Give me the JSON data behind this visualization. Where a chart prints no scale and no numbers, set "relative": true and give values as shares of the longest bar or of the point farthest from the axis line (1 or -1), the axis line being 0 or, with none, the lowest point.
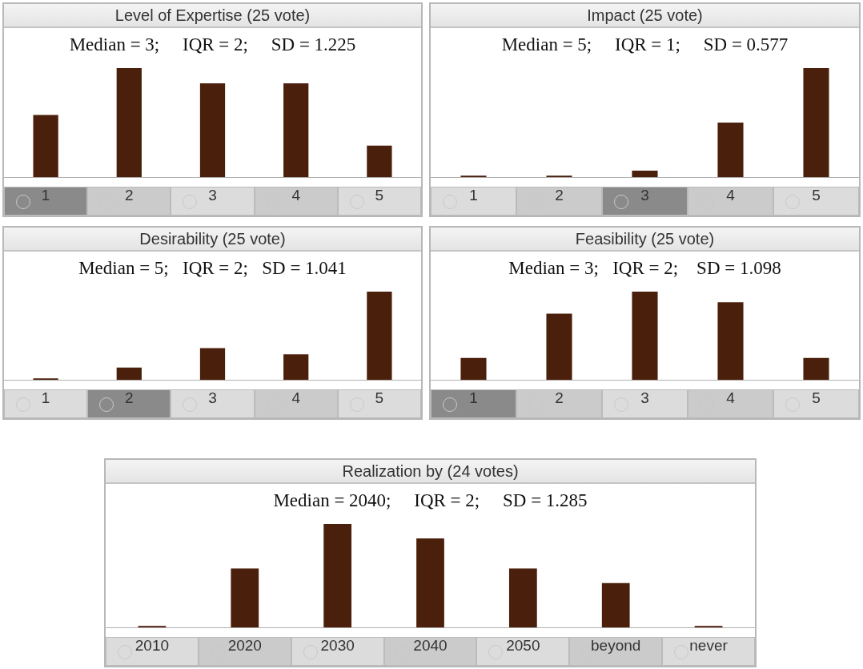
{
  "chart_data": [
    {
      "type": "bar",
      "title": "Level of Expertise (25 vote)",
      "subtitle": "Median = 3;     IQR = 2;     SD = 1.225",
      "relative": true,
      "categories": [
        "1",
        "2",
        "3",
        "4",
        "5"
      ],
      "values": [
        0.57,
        1,
        0.86,
        0.86,
        0.29
      ],
      "color": "#4a1f0b"
    },
    {
      "type": "bar",
      "title": "Impact (25 vote)",
      "subtitle": "Median = 5;     IQR = 1;     SD = 0.577",
      "relative": true,
      "categories": [
        "1",
        "2",
        "3",
        "4",
        "5"
      ],
      "values": [
        0,
        0,
        0.06,
        0.5,
        1
      ],
      "color": "#4a1f0b"
    },
    {
      "type": "bar",
      "title": "Desirability (25 vote)",
      "subtitle": "Median = 5;   IQR = 2;   SD = 1.041",
      "relative": true,
      "categories": [
        "1",
        "2",
        "3",
        "4",
        "5"
      ],
      "values": [
        0,
        0.14,
        0.36,
        0.29,
        1
      ],
      "color": "#4a1f0b"
    },
    {
      "type": "bar",
      "title": "Feasibility (25 vote)",
      "subtitle": "Median = 3;   IQR = 2;    SD = 1.098",
      "relative": true,
      "categories": [
        "1",
        "2",
        "3",
        "4",
        "5"
      ],
      "values": [
        0.25,
        0.75,
        1,
        0.88,
        0.25
      ],
      "color": "#4a1f0b"
    },
    {
      "type": "bar",
      "title": "Realization by (24 votes)",
      "subtitle": "Median = 2040;     IQR = 2;     SD = 1.285",
      "relative": true,
      "categories": [
        "2010",
        "2020",
        "2030",
        "2040",
        "2050",
        "beyond",
        "never"
      ],
      "values": [
        0,
        0.57,
        1,
        0.86,
        0.57,
        0.43,
        0
      ],
      "color": "#4a1f0b"
    }
  ]
}
